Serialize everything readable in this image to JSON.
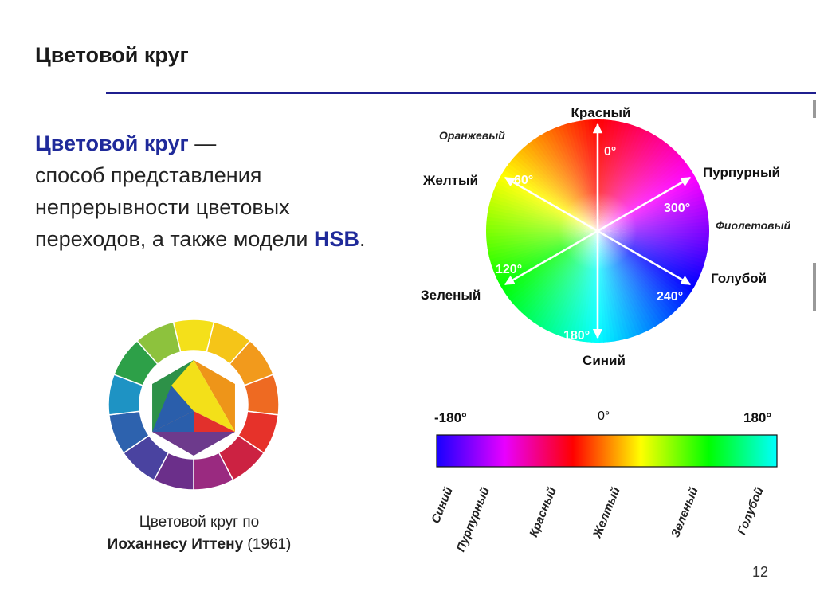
{
  "slide": {
    "title": "Цветовой круг",
    "page_number": "12"
  },
  "definition": {
    "term": "Цветовой круг",
    "dash": " —",
    "body": "способ представления непрерывности цветовых переходов, а также модели",
    "acronym": "HSB",
    "end": "."
  },
  "itten": {
    "caption_line1": "Цветовой круг по",
    "caption_name": "Иоханнесу Иттену",
    "caption_year": " (1961)",
    "outer_colors": [
      "#f4e01a",
      "#f5c518",
      "#f29a1c",
      "#ee6a22",
      "#e6322a",
      "#cc2242",
      "#9a2a80",
      "#6b2f8a",
      "#4a43a0",
      "#2d62ae",
      "#1e93c4",
      "#2da048",
      "#8dc23d"
    ],
    "triangle": {
      "top": "#f3e019",
      "left": "#2a5eab",
      "right": "#e2302c"
    },
    "hexagon": {
      "left_upper": "#2d9148",
      "right_upper": "#ee9519",
      "bottom": "#6d3a8c"
    }
  },
  "hsb_wheel": {
    "color_labels": {
      "red": "Красный",
      "orange": "Оранжевый",
      "yellow": "Желтый",
      "purple": "Пурпурный",
      "violet": "Фиолетовый",
      "green": "Зеленый",
      "cyan": "Голубой",
      "blue": "Синий"
    },
    "degree_labels": [
      "0°",
      "60°",
      "120°",
      "180°",
      "240°",
      "300°"
    ],
    "degree_values": [
      0,
      60,
      120,
      180,
      240,
      300
    ],
    "hue_stops": [
      "#ff0000",
      "#ffff00",
      "#00ff00",
      "#00ffff",
      "#0000ff",
      "#ff00ff"
    ]
  },
  "hue_bar": {
    "left_label": "-180°",
    "center_label": "0°",
    "right_label": "180°",
    "gradient": [
      "#1800ff",
      "#e800ff",
      "#ff0000",
      "#ffff00",
      "#00ff00",
      "#00ffff"
    ],
    "color_labels": [
      "Синий",
      "Пурпурный",
      "Красный",
      "Желтый",
      "Зеленый",
      "Голубой"
    ]
  }
}
